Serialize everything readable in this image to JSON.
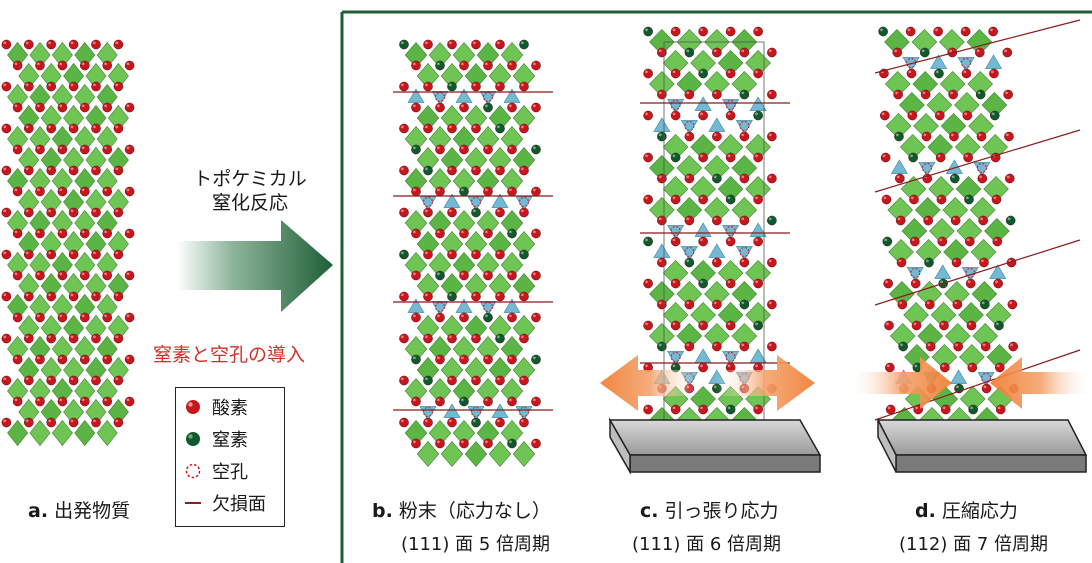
{
  "process": {
    "line1": "トポケミカル",
    "line2": "窒化反応",
    "introduction": "窒素と空孔の導入"
  },
  "legend": {
    "items": [
      {
        "label": "酸素",
        "symbol": "oxygen-atom",
        "color": "#c8161d"
      },
      {
        "label": "窒素",
        "symbol": "nitrogen-atom",
        "color": "#0f5a2c"
      },
      {
        "label": "空孔",
        "symbol": "vacancy",
        "color": "#c8161d"
      },
      {
        "label": "欠損面",
        "symbol": "defect-plane-line",
        "color": "#8c1b1b"
      }
    ]
  },
  "panels": [
    {
      "letter": "a.",
      "title": "出発物質",
      "subtitle": ""
    },
    {
      "letter": "b.",
      "title": "粉末（応力なし）",
      "subtitle": "(111) 面 5 倍周期"
    },
    {
      "letter": "c.",
      "title": "引っ張り応力",
      "subtitle": "(111) 面  6 倍周期"
    },
    {
      "letter": "d.",
      "title": "圧縮応力",
      "subtitle": "(112) 面 7 倍周期"
    }
  ],
  "colors": {
    "frame": "#1e5f36",
    "arrow_dark": "#1e5f36",
    "octahedron": "#67c24b",
    "tetrahedron": "#74b9d3",
    "oxygen": "#c8161d",
    "nitrogen": "#0f5a2c",
    "stress_arrow": "#ef7a2d",
    "intro_text": "#d2312a"
  }
}
